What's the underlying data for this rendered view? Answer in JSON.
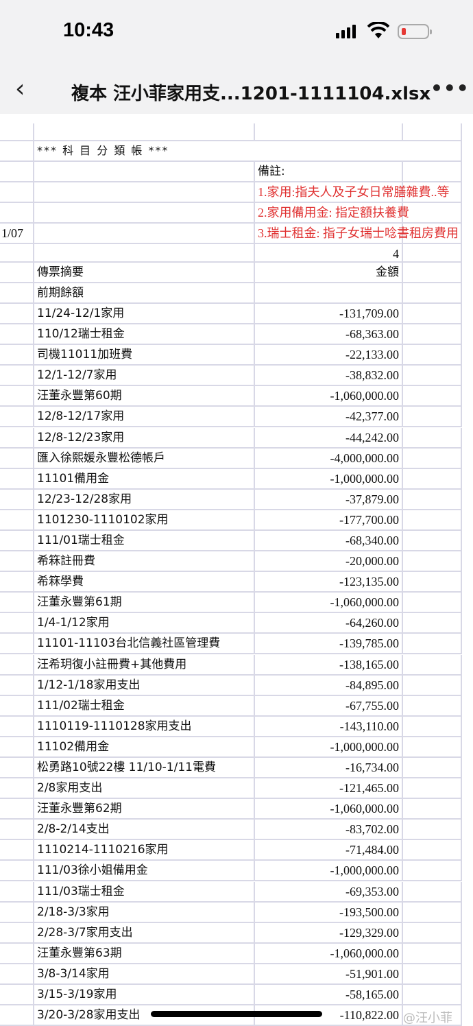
{
  "status_bar": {
    "time": "10:43",
    "battery_level": "low"
  },
  "nav": {
    "back_icon": "chevron-left-icon",
    "title": "複本 汪小菲家用支...1201-1111104.xlsx",
    "more_icon": "ellipsis-icon"
  },
  "sheet": {
    "heading": "*** 科 目 分 類 帳 ***",
    "note_label": "備註:",
    "notes": [
      "1.家用:指夫人及子女日常膳雜費..等",
      "2.家用備用金: 指定額扶養費",
      "3.瑞士租金: 指子女瑞士唸書租房費用"
    ],
    "date_fragment": "1/07",
    "page_number": "4",
    "col_summary": "傳票摘要",
    "col_amount": "金額",
    "opening": "前期餘額",
    "rows": [
      {
        "desc": "11/24-12/1家用",
        "amount": "-131,709.00"
      },
      {
        "desc": "110/12瑞士租金",
        "amount": "-68,363.00"
      },
      {
        "desc": "司機11011加班費",
        "amount": "-22,133.00"
      },
      {
        "desc": "12/1-12/7家用",
        "amount": "-38,832.00"
      },
      {
        "desc": "汪董永豐第60期",
        "amount": "-1,060,000.00"
      },
      {
        "desc": "12/8-12/17家用",
        "amount": "-42,377.00"
      },
      {
        "desc": "12/8-12/23家用",
        "amount": "-44,242.00"
      },
      {
        "desc": "匯入徐熙媛永豐松德帳戶",
        "amount": "-4,000,000.00"
      },
      {
        "desc": "11101備用金",
        "amount": "-1,000,000.00"
      },
      {
        "desc": "12/23-12/28家用",
        "amount": "-37,879.00"
      },
      {
        "desc": "1101230-1110102家用",
        "amount": "-177,700.00"
      },
      {
        "desc": "111/01瑞士租金",
        "amount": "-68,340.00"
      },
      {
        "desc": "希箖註冊費",
        "amount": "-20,000.00"
      },
      {
        "desc": "希箖學費",
        "amount": "-123,135.00"
      },
      {
        "desc": "汪董永豐第61期",
        "amount": "-1,060,000.00"
      },
      {
        "desc": "1/4-1/12家用",
        "amount": "-64,260.00"
      },
      {
        "desc": "11101-11103台北信義社區管理費",
        "amount": "-139,785.00"
      },
      {
        "desc": "汪希玥復小註冊費+其他費用",
        "amount": "-138,165.00"
      },
      {
        "desc": "1/12-1/18家用支出",
        "amount": "-84,895.00"
      },
      {
        "desc": "111/02瑞士租金",
        "amount": "-67,755.00"
      },
      {
        "desc": "1110119-1110128家用支出",
        "amount": "-143,110.00"
      },
      {
        "desc": "11102備用金",
        "amount": "-1,000,000.00"
      },
      {
        "desc": "松勇路10號22樓 11/10-1/11電費",
        "amount": "-16,734.00"
      },
      {
        "desc": "2/8家用支出",
        "amount": "-121,465.00"
      },
      {
        "desc": "汪董永豐第62期",
        "amount": "-1,060,000.00"
      },
      {
        "desc": "2/8-2/14支出",
        "amount": "-83,702.00"
      },
      {
        "desc": "1110214-1110216家用",
        "amount": "-71,484.00"
      },
      {
        "desc": "111/03徐小姐備用金",
        "amount": "-1,000,000.00"
      },
      {
        "desc": "111/03瑞士租金",
        "amount": "-69,353.00"
      },
      {
        "desc": "2/18-3/3家用",
        "amount": "-193,500.00"
      },
      {
        "desc": "2/28-3/7家用支出",
        "amount": "-129,329.00"
      },
      {
        "desc": "汪董永豐第63期",
        "amount": "-1,060,000.00"
      },
      {
        "desc": "3/8-3/14家用",
        "amount": "-51,901.00"
      },
      {
        "desc": "3/15-3/19家用",
        "amount": "-58,165.00"
      },
      {
        "desc": "3/20-3/28家用支出",
        "amount": "-110,822.00"
      }
    ]
  },
  "watermark": "@汪小菲",
  "colors": {
    "note_red": "#e03131",
    "grid": "#d8d8e6"
  }
}
